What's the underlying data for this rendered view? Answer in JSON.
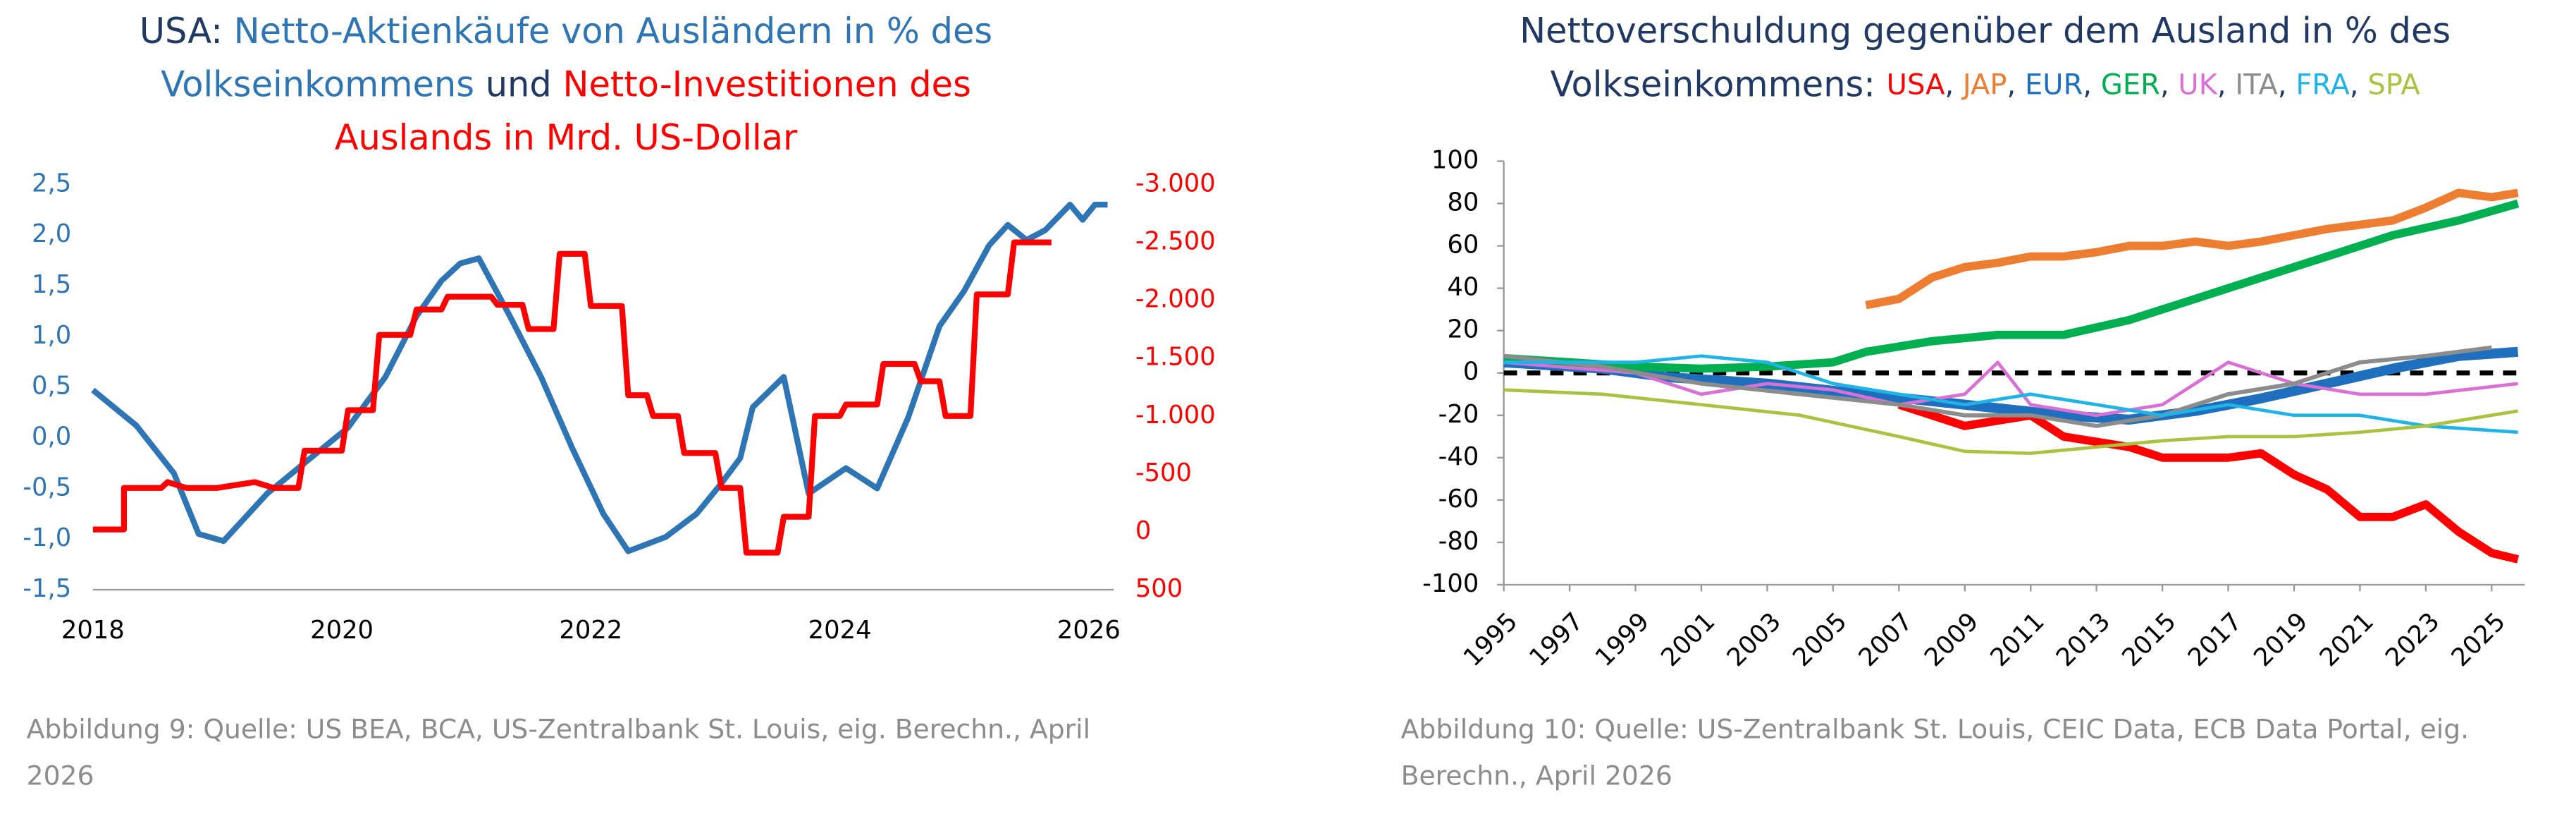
{
  "chart_data": [
    {
      "type": "line",
      "title_lines": [
        [
          {
            "text": "USA: ",
            "color": "#1f3864"
          },
          {
            "text": "Netto-Aktienkäufe von Ausländern in % des",
            "color": "#2e75b6"
          }
        ],
        [
          {
            "text": "Volkseinkommens",
            "color": "#2e75b6"
          },
          {
            "text": " und ",
            "color": "#1f3864"
          },
          {
            "text": "Netto-Investitionen des",
            "color": "#ff0000"
          }
        ],
        [
          {
            "text": "Auslands in Mrd. US-Dollar",
            "color": "#ff0000"
          }
        ]
      ],
      "xlim": [
        2018,
        2026.2
      ],
      "xticks": [
        2018,
        2020,
        2022,
        2024,
        2026
      ],
      "ylim": [
        -1.5,
        2.5
      ],
      "yticks": [
        {
          "value": -1.5,
          "label": "-1,5"
        },
        {
          "value": -1,
          "label": "-1,0"
        },
        {
          "value": -0.5,
          "label": "-0,5"
        },
        {
          "value": 0,
          "label": "0,0"
        },
        {
          "value": 0.5,
          "label": "0,5"
        },
        {
          "value": 1,
          "label": "1,0"
        },
        {
          "value": 1.5,
          "label": "1,5"
        },
        {
          "value": 2,
          "label": "2,0"
        },
        {
          "value": 2.5,
          "label": "2,5"
        }
      ],
      "ytick_color": "#2e75b6",
      "y2lim": [
        500,
        -3000
      ],
      "y2ticks": [
        500,
        0,
        -500,
        {
          "value": -1000,
          "label": "-1.000"
        },
        {
          "value": -1500,
          "label": "-1.500"
        },
        {
          "value": -2000,
          "label": "-2.000"
        },
        {
          "value": -2500,
          "label": "-2.500"
        },
        {
          "value": -3000,
          "label": "-3.000"
        }
      ],
      "y2tick_color": "#ff0000",
      "series": [
        {
          "color": "#2e75b6",
          "linewidth": 3.5,
          "axis": "y",
          "x": [
            2018.0,
            2018.35,
            2018.65,
            2018.85,
            2019.05,
            2019.4,
            2019.75,
            2020.05,
            2020.35,
            2020.6,
            2020.8,
            2020.95,
            2021.1,
            2021.35,
            2021.6,
            2021.85,
            2022.1,
            2022.3,
            2022.6,
            2022.85,
            2023.05,
            2023.2,
            2023.3,
            2023.55,
            2023.75,
            2024.05,
            2024.3,
            2024.55,
            2024.8,
            2025.0,
            2025.2,
            2025.35,
            2025.5,
            2025.65,
            2025.85,
            2025.95,
            2026.05,
            2026.15
          ],
          "values": [
            0.47,
            0.12,
            -0.35,
            -0.95,
            -1.02,
            -0.55,
            -0.2,
            0.1,
            0.6,
            1.2,
            1.55,
            1.72,
            1.77,
            1.2,
            0.6,
            -0.1,
            -0.75,
            -1.12,
            -0.98,
            -0.75,
            -0.45,
            -0.2,
            0.3,
            0.6,
            -0.55,
            -0.3,
            -0.5,
            0.2,
            1.1,
            1.45,
            1.9,
            2.1,
            1.95,
            2.05,
            2.3,
            2.15,
            2.3,
            2.3
          ]
        },
        {
          "color": "#ff0000",
          "linewidth": 3.5,
          "axis": "y2",
          "x": [
            2018.0,
            2018.25,
            2018.25,
            2018.55,
            2018.6,
            2018.75,
            2019.0,
            2019.3,
            2019.45,
            2019.65,
            2019.7,
            2020.0,
            2020.05,
            2020.25,
            2020.3,
            2020.55,
            2020.6,
            2020.8,
            2020.85,
            2021.2,
            2021.25,
            2021.45,
            2021.5,
            2021.7,
            2021.75,
            2021.95,
            2022.0,
            2022.25,
            2022.3,
            2022.45,
            2022.5,
            2022.7,
            2022.75,
            2023.0,
            2023.05,
            2023.2,
            2023.25,
            2023.5,
            2023.55,
            2023.75,
            2023.8,
            2024.0,
            2024.05,
            2024.3,
            2024.35,
            2024.6,
            2024.65,
            2024.8,
            2024.85,
            2025.05,
            2025.1,
            2025.35,
            2025.4,
            2025.7
          ],
          "values": [
            -20,
            -20,
            -380,
            -380,
            -430,
            -380,
            -380,
            -430,
            -380,
            -380,
            -700,
            -700,
            -1050,
            -1050,
            -1700,
            -1700,
            -1920,
            -1920,
            -2030,
            -2030,
            -1960,
            -1960,
            -1750,
            -1750,
            -2400,
            -2400,
            -1950,
            -1950,
            -1180,
            -1180,
            -1000,
            -1000,
            -680,
            -680,
            -380,
            -380,
            180,
            180,
            -130,
            -130,
            -1000,
            -1000,
            -1100,
            -1100,
            -1450,
            -1450,
            -1300,
            -1300,
            -1000,
            -1000,
            -2050,
            -2050,
            -2500,
            -2500
          ]
        }
      ],
      "caption": [
        "Abbildung 9: Quelle: US BEA, BCA, US-Zentralbank St. Louis, eig. Berechn., April",
        "2026"
      ]
    },
    {
      "type": "line",
      "title": "Nettoverschuldung gegenüber dem Ausland in % des",
      "title_line2": "Volkseinkommens: ",
      "title_color": "#1f3864",
      "legend_separator": ", ",
      "xlim": [
        1995,
        2026
      ],
      "xticks": [
        1995,
        1997,
        1999,
        2001,
        2003,
        2005,
        2007,
        2009,
        2011,
        2013,
        2015,
        2017,
        2019,
        2021,
        2023,
        2025
      ],
      "ylim": [
        -100,
        100
      ],
      "yticks": [
        -100,
        -80,
        -60,
        -40,
        -20,
        0,
        20,
        40,
        60,
        80,
        100
      ],
      "hline": 0,
      "series": [
        {
          "name": "USA",
          "color": "#ff0000",
          "linewidth": 5,
          "x": [
            2007,
            2009,
            2011,
            2012,
            2014,
            2015,
            2017,
            2018,
            2019,
            2020,
            2021,
            2022,
            2023,
            2024,
            2025,
            2025.8
          ],
          "values": [
            -15,
            -25,
            -20,
            -30,
            -35,
            -40,
            -40,
            -38,
            -48,
            -55,
            -68,
            -68,
            -62,
            -75,
            -85,
            -88
          ]
        },
        {
          "name": "JAP",
          "color": "#ed7d31",
          "linewidth": 5,
          "x": [
            2006,
            2007,
            2008,
            2009,
            2010,
            2011,
            2012,
            2013,
            2014,
            2015,
            2016,
            2017,
            2018,
            2019,
            2020,
            2021,
            2022,
            2023,
            2024,
            2025,
            2025.8
          ],
          "values": [
            32,
            35,
            45,
            50,
            52,
            55,
            55,
            57,
            60,
            60,
            62,
            60,
            62,
            65,
            68,
            70,
            72,
            78,
            85,
            83,
            85
          ]
        },
        {
          "name": "EUR",
          "color": "#1f6fbf",
          "linewidth": 6,
          "x": [
            1995,
            1998,
            2000,
            2003,
            2006,
            2009,
            2012,
            2014,
            2016,
            2018,
            2020,
            2022,
            2024,
            2025.8
          ],
          "values": [
            5,
            2,
            -2,
            -5,
            -10,
            -15,
            -20,
            -22,
            -18,
            -12,
            -5,
            2,
            8,
            10
          ]
        },
        {
          "name": "GER",
          "color": "#00b050",
          "linewidth": 5,
          "x": [
            1995,
            1997,
            1999,
            2001,
            2003,
            2005,
            2006,
            2008,
            2010,
            2012,
            2014,
            2016,
            2018,
            2020,
            2022,
            2024,
            2025.8
          ],
          "values": [
            7,
            5,
            3,
            2,
            3,
            5,
            10,
            15,
            18,
            18,
            25,
            35,
            45,
            55,
            65,
            72,
            80
          ]
        },
        {
          "name": "UK",
          "color": "#da70d6",
          "linewidth": 2,
          "x": [
            1995,
            1999,
            2001,
            2003,
            2005,
            2007,
            2009,
            2010,
            2011,
            2013,
            2015,
            2017,
            2019,
            2021,
            2023,
            2025.8
          ],
          "values": [
            5,
            0,
            -10,
            -5,
            -8,
            -15,
            -10,
            5,
            -15,
            -20,
            -15,
            5,
            -5,
            -10,
            -10,
            -5
          ]
        },
        {
          "name": "ITA",
          "color": "#8c8c8c",
          "linewidth": 2.5,
          "x": [
            1995,
            1998,
            2001,
            2004,
            2007,
            2009,
            2011,
            2013,
            2015,
            2017,
            2019,
            2021,
            2023,
            2025
          ],
          "values": [
            8,
            3,
            -5,
            -10,
            -15,
            -20,
            -20,
            -25,
            -20,
            -10,
            -5,
            5,
            8,
            12
          ]
        },
        {
          "name": "FRA",
          "color": "#1fb4e8",
          "linewidth": 2,
          "x": [
            1995,
            1999,
            2001,
            2003,
            2005,
            2007,
            2009,
            2011,
            2013,
            2015,
            2017,
            2019,
            2021,
            2023,
            2025.8
          ],
          "values": [
            5,
            5,
            8,
            5,
            -5,
            -10,
            -15,
            -10,
            -15,
            -20,
            -15,
            -20,
            -20,
            -25,
            -28
          ]
        },
        {
          "name": "SPA",
          "color": "#a9c23f",
          "linewidth": 2,
          "x": [
            1995,
            1998,
            2001,
            2004,
            2007,
            2009,
            2011,
            2013,
            2015,
            2017,
            2019,
            2021,
            2023,
            2025.8
          ],
          "values": [
            -8,
            -10,
            -15,
            -20,
            -30,
            -37,
            -38,
            -35,
            -32,
            -30,
            -30,
            -28,
            -25,
            -18
          ]
        }
      ],
      "caption": [
        "Abbildung 10: Quelle: US-Zentralbank St. Louis, CEIC Data, ECB Data Portal, eig.",
        "Berechn., April 2026"
      ]
    }
  ]
}
